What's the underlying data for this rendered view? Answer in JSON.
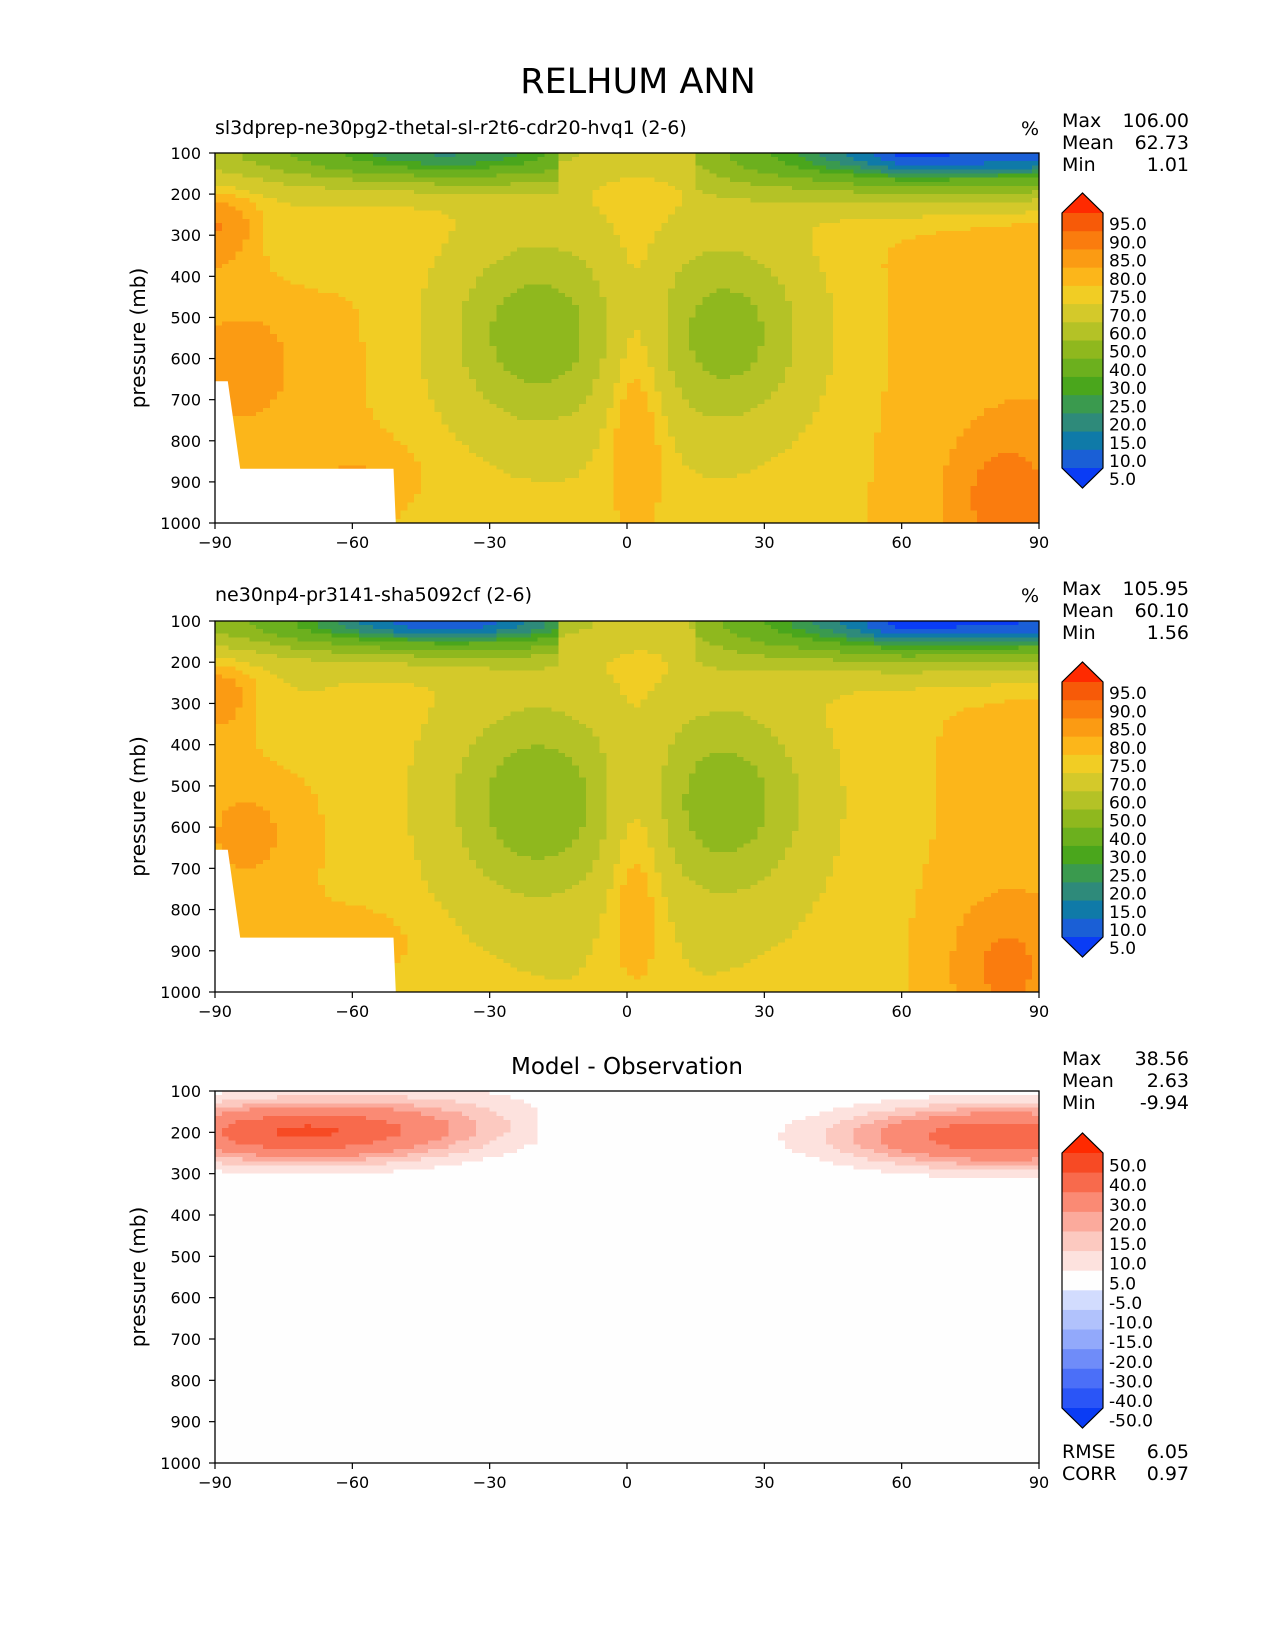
{
  "figure": {
    "title": "RELHUM ANN"
  },
  "colors": {
    "abs_levels": [
      5,
      10,
      15,
      20,
      25,
      30,
      40,
      50,
      60,
      70,
      75,
      80,
      85,
      90,
      95
    ],
    "abs_palette": [
      "#0a3cf5",
      "#1a5fd6",
      "#0f7aa8",
      "#2e8a7a",
      "#3a9a4e",
      "#4aa61c",
      "#6cb01e",
      "#8fb81e",
      "#b4c226",
      "#d4c92a",
      "#f1cd24",
      "#fcb61a",
      "#fb9b13",
      "#fa7c0e",
      "#f75a08",
      "#ff2a00"
    ],
    "diff_levels": [
      -50,
      -40,
      -30,
      -20,
      -15,
      -10,
      -5,
      5,
      10,
      15,
      20,
      30,
      40,
      50
    ],
    "diff_palette": [
      "#0a3cf5",
      "#2a55f7",
      "#4b6ff8",
      "#6f8cf9",
      "#92a9fb",
      "#b1c2fc",
      "#d2dcfe",
      "#fefefe",
      "#fde2de",
      "#fcc9c0",
      "#fbaa9c",
      "#fa8a74",
      "#f86a4c",
      "#f74a24",
      "#ff2a00"
    ]
  },
  "chart_data": [
    {
      "type": "heatmap",
      "title": "sl3dprep-ne30pg2-thetal-sl-r2t6-cdr20-hvq1 (2-6)",
      "units": "%",
      "xlabel": "",
      "ylabel": "pressure (mb)",
      "xlim": [
        -90,
        90
      ],
      "ylim": [
        1000,
        100
      ],
      "xticks": [
        "−90",
        "−60",
        "−30",
        "0",
        "30",
        "60",
        "90"
      ],
      "yticks": [
        "100",
        "200",
        "300",
        "400",
        "500",
        "600",
        "700",
        "800",
        "900",
        "1000"
      ],
      "stats": {
        "max_label": "Max",
        "max": "106.00",
        "mean_label": "Mean",
        "mean": "62.73",
        "min_label": "Min",
        "min": "1.01"
      },
      "colorbar_labels": [
        "95.0",
        "90.0",
        "85.0",
        "80.0",
        "75.0",
        "70.0",
        "60.0",
        "50.0",
        "40.0",
        "30.0",
        "25.0",
        "20.0",
        "15.0",
        "10.0",
        "5.0"
      ],
      "field": "model_a"
    },
    {
      "type": "heatmap",
      "title": "ne30np4-pr3141-sha5092cf (2-6)",
      "units": "%",
      "xlabel": "",
      "ylabel": "pressure (mb)",
      "xlim": [
        -90,
        90
      ],
      "ylim": [
        1000,
        100
      ],
      "xticks": [
        "−90",
        "−60",
        "−30",
        "0",
        "30",
        "60",
        "90"
      ],
      "yticks": [
        "100",
        "200",
        "300",
        "400",
        "500",
        "600",
        "700",
        "800",
        "900",
        "1000"
      ],
      "stats": {
        "max_label": "Max",
        "max": "105.95",
        "mean_label": "Mean",
        "mean": "60.10",
        "min_label": "Min",
        "min": "1.56"
      },
      "colorbar_labels": [
        "95.0",
        "90.0",
        "85.0",
        "80.0",
        "75.0",
        "70.0",
        "60.0",
        "50.0",
        "40.0",
        "30.0",
        "25.0",
        "20.0",
        "15.0",
        "10.0",
        "5.0"
      ],
      "field": "model_b"
    },
    {
      "type": "heatmap",
      "title": "Model - Observation",
      "units": "",
      "xlabel": "",
      "ylabel": "pressure (mb)",
      "xlim": [
        -90,
        90
      ],
      "ylim": [
        1000,
        100
      ],
      "xticks": [
        "−90",
        "−60",
        "−30",
        "0",
        "30",
        "60",
        "90"
      ],
      "yticks": [
        "100",
        "200",
        "300",
        "400",
        "500",
        "600",
        "700",
        "800",
        "900",
        "1000"
      ],
      "stats": {
        "max_label": "Max",
        "max": "38.56",
        "mean_label": "Mean",
        "mean": "2.63",
        "min_label": "Min",
        "min": "-9.94"
      },
      "colorbar_labels": [
        "50.0",
        "40.0",
        "30.0",
        "20.0",
        "15.0",
        "10.0",
        "5.0",
        "-5.0",
        "-10.0",
        "-15.0",
        "-20.0",
        "-30.0",
        "-40.0",
        "-50.0"
      ],
      "metrics": {
        "rmse_label": "RMSE",
        "rmse": "6.05",
        "corr_label": "CORR",
        "corr": "0.97"
      },
      "field": "difference"
    }
  ]
}
